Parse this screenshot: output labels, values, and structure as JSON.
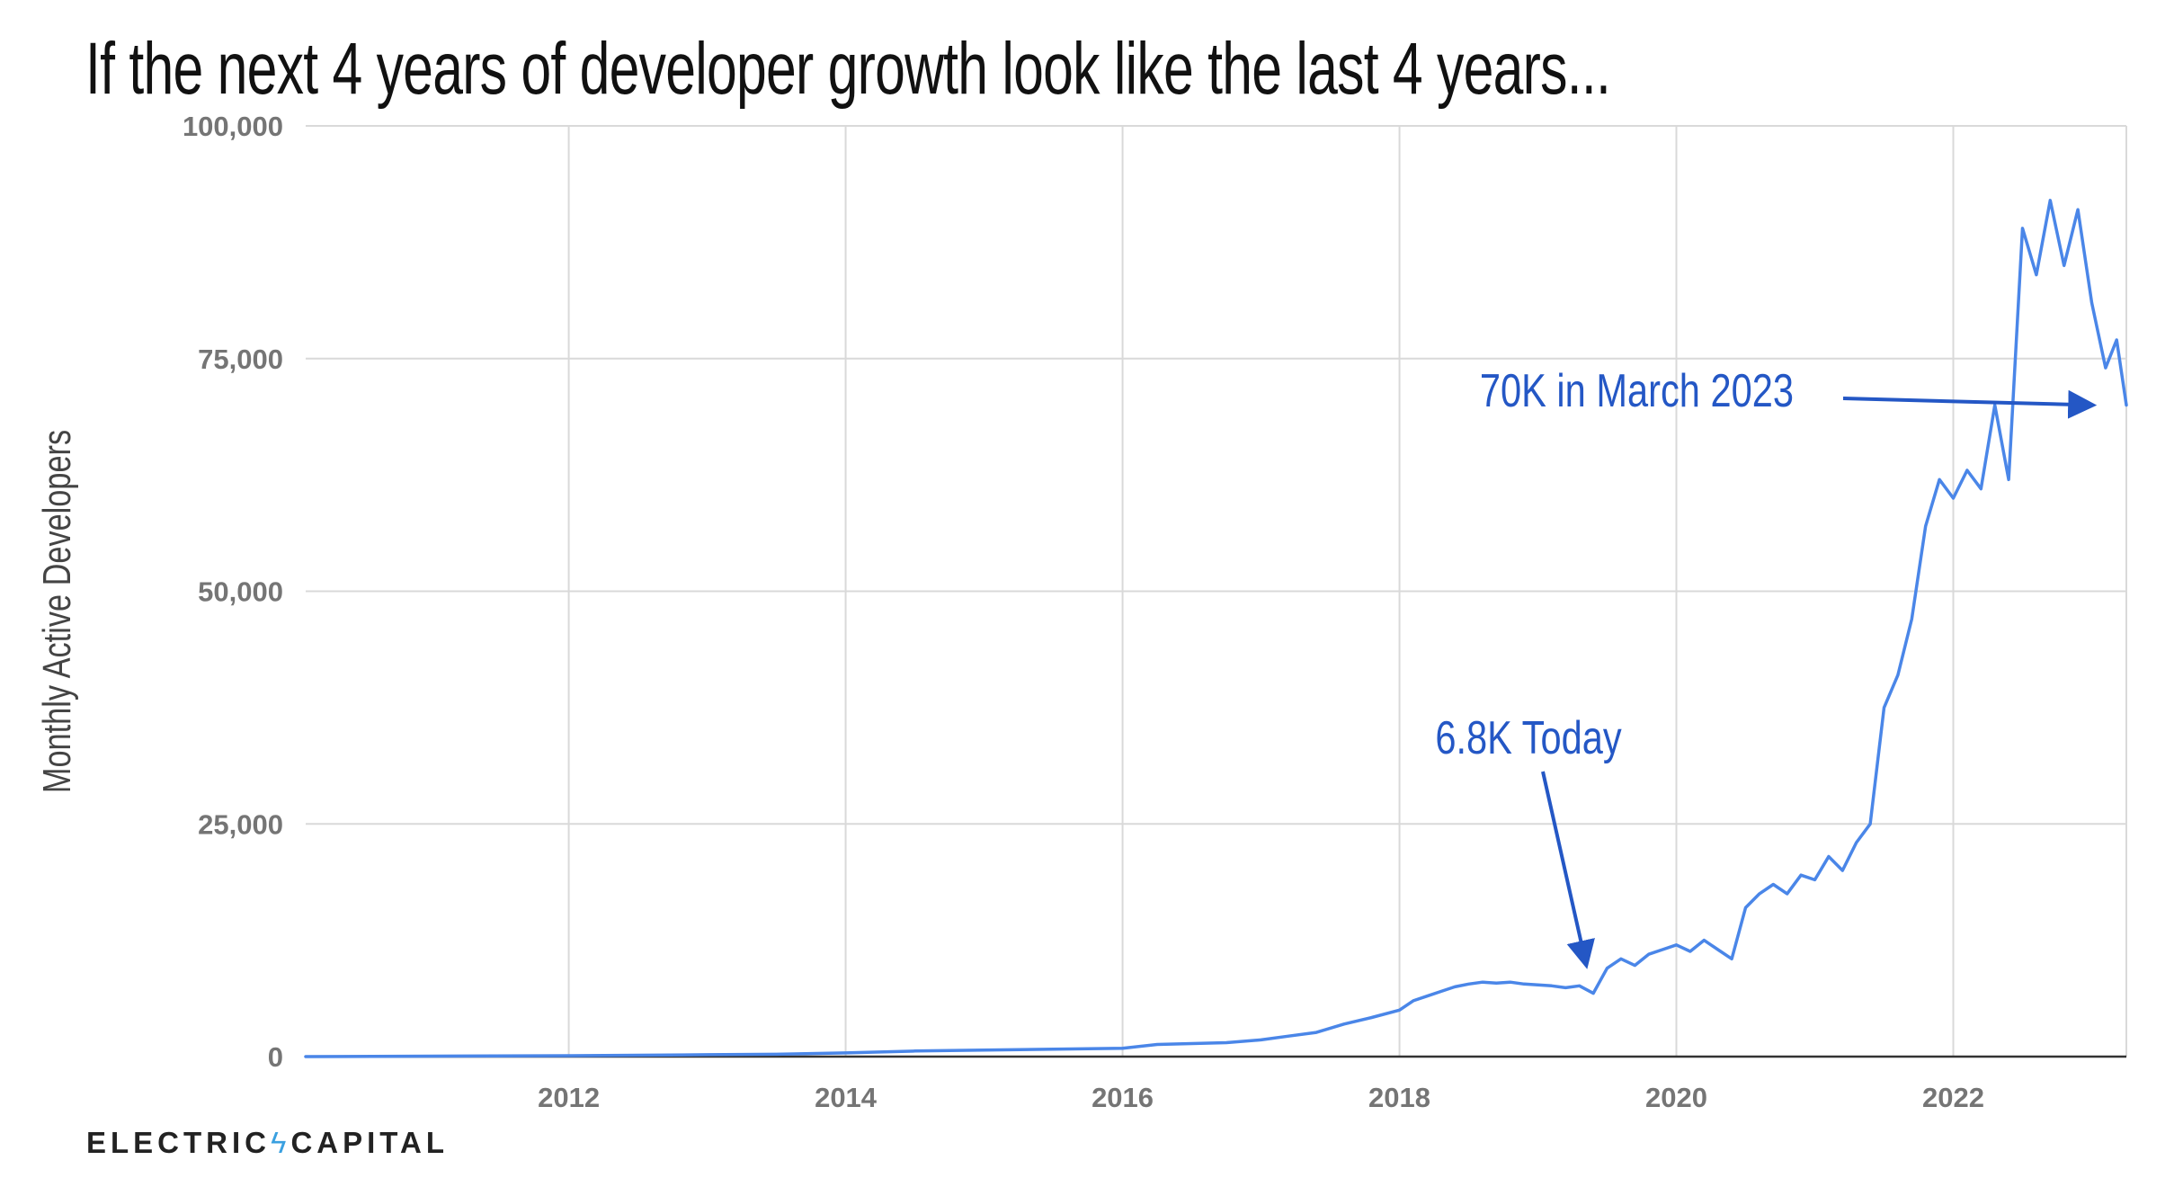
{
  "title": "If the next 4 years of developer growth look like the last 4 years...",
  "logo": {
    "left": "ELECTRIC",
    "separator": "ϟ",
    "right": "CAPITAL"
  },
  "colors": {
    "line": "#4a86e8",
    "annotation": "#2457c5",
    "grid": "#d9d9d9",
    "tick": "#757575"
  },
  "chart_data": {
    "type": "line",
    "title": "If the next 4 years of developer growth look like the last 4 years...",
    "xlabel": "",
    "ylabel": "Monthly Active Developers",
    "xlim": [
      2010.1,
      2023.25
    ],
    "ylim": [
      0,
      100000
    ],
    "grid": true,
    "x_ticks": [
      2012,
      2014,
      2016,
      2018,
      2020,
      2022
    ],
    "x_tick_labels": [
      "2012",
      "2014",
      "2016",
      "2018",
      "2020",
      "2022"
    ],
    "y_ticks": [
      0,
      25000,
      50000,
      75000,
      100000
    ],
    "y_tick_labels": [
      "0",
      "25,000",
      "50,000",
      "75,000",
      "100,000"
    ],
    "series": [
      {
        "name": "Monthly Active Developers",
        "x": [
          2010.1,
          2011,
          2012,
          2013,
          2013.5,
          2014,
          2014.5,
          2015,
          2015.5,
          2016,
          2016.25,
          2016.5,
          2016.75,
          2017,
          2017.2,
          2017.4,
          2017.6,
          2017.8,
          2018,
          2018.1,
          2018.2,
          2018.3,
          2018.4,
          2018.5,
          2018.6,
          2018.7,
          2018.8,
          2018.9,
          2019,
          2019.1,
          2019.2,
          2019.3,
          2019.4,
          2019.5,
          2019.6,
          2019.7,
          2019.8,
          2019.9,
          2020,
          2020.1,
          2020.2,
          2020.3,
          2020.4,
          2020.5,
          2020.6,
          2020.7,
          2020.8,
          2020.9,
          2021,
          2021.1,
          2021.2,
          2021.3,
          2021.4,
          2021.5,
          2021.6,
          2021.7,
          2021.8,
          2021.9,
          2022,
          2022.1,
          2022.2,
          2022.3,
          2022.4,
          2022.5,
          2022.6,
          2022.7,
          2022.8,
          2022.9,
          2023,
          2023.1,
          2023.18,
          2023.25
        ],
        "values": [
          0,
          50,
          100,
          200,
          250,
          400,
          600,
          700,
          800,
          900,
          1300,
          1400,
          1500,
          1800,
          2200,
          2600,
          3500,
          4200,
          5000,
          6000,
          6500,
          7000,
          7500,
          7800,
          8000,
          7900,
          8000,
          7800,
          7700,
          7600,
          7400,
          7600,
          6800,
          9500,
          10500,
          9800,
          11000,
          11500,
          12000,
          11300,
          12500,
          11500,
          10500,
          16000,
          17500,
          18500,
          17500,
          19500,
          19000,
          21500,
          20000,
          23000,
          25000,
          37500,
          41000,
          47000,
          57000,
          62000,
          60000,
          63000,
          61000,
          70000,
          62000,
          89000,
          84000,
          92000,
          85000,
          91000,
          81000,
          74000,
          77000,
          70000
        ]
      }
    ],
    "annotations": [
      {
        "text": "6.8K Today",
        "x": 2019.35,
        "y": 9000
      },
      {
        "text": "70K in March 2023",
        "x": 2023.05,
        "y": 70000
      }
    ]
  }
}
